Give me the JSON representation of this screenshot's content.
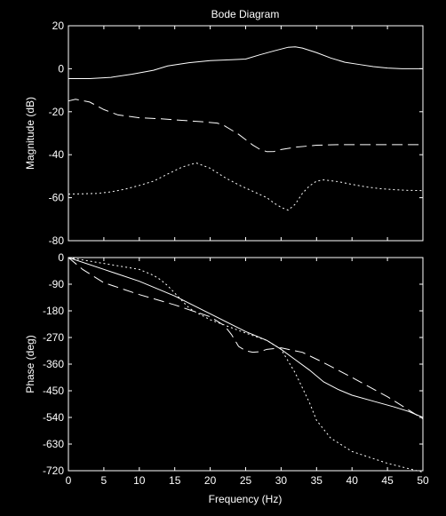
{
  "chart_data": [
    {
      "type": "line",
      "title": "Bode Diagram",
      "xlabel": "",
      "ylabel": "Magnitude (dB)",
      "xlim": [
        0,
        50
      ],
      "ylim": [
        -80,
        20
      ],
      "x_ticks": [
        0,
        5,
        10,
        15,
        20,
        25,
        30,
        35,
        40,
        45,
        50
      ],
      "y_ticks": [
        20,
        0,
        -20,
        -40,
        -60,
        -80
      ],
      "y_tick_labels": [
        "20",
        "0",
        "-20",
        "-40",
        "-60",
        "-80"
      ],
      "grid": false,
      "series": [
        {
          "style": "solid",
          "x": [
            0,
            3,
            6,
            9,
            12,
            14,
            17,
            20,
            23,
            25,
            27,
            29,
            31,
            32,
            33,
            35,
            37,
            39,
            41,
            43,
            45,
            47,
            50
          ],
          "y": [
            -4.6,
            -4.6,
            -4,
            -2.5,
            -0.7,
            1.3,
            2.8,
            3.8,
            4.2,
            4.5,
            6.5,
            8.3,
            10,
            10.2,
            9.6,
            7.5,
            5,
            3,
            2,
            1,
            0.3,
            0,
            0
          ]
        },
        {
          "style": "dashed",
          "x": [
            0,
            1,
            3,
            5,
            7,
            10,
            13,
            16,
            19,
            21,
            22,
            23,
            24,
            25,
            26,
            27,
            28,
            29,
            30,
            32,
            35,
            38,
            42,
            46,
            50
          ],
          "y": [
            -15,
            -14.2,
            -15.5,
            -19,
            -21.5,
            -22.8,
            -23.3,
            -24,
            -24.7,
            -25.3,
            -26.5,
            -28.5,
            -30.5,
            -33,
            -35.5,
            -37.5,
            -38.6,
            -38.5,
            -37.6,
            -36.5,
            -35.6,
            -35.3,
            -35.3,
            -35.3,
            -35.3
          ]
        },
        {
          "style": "dotted",
          "x": [
            0,
            2,
            4,
            6,
            8,
            10,
            12,
            14,
            16,
            18,
            20,
            22,
            24,
            26,
            28,
            29,
            30,
            31,
            32,
            33,
            34,
            35,
            36,
            38,
            40,
            42,
            44,
            46,
            48,
            50
          ],
          "y": [
            -58.3,
            -58.2,
            -58,
            -57.3,
            -56,
            -54.3,
            -52.3,
            -49,
            -45.8,
            -43.8,
            -46.3,
            -50.5,
            -54,
            -57,
            -60,
            -62.5,
            -64.5,
            -65.8,
            -63,
            -58,
            -54.5,
            -52.3,
            -51.7,
            -52.5,
            -53.8,
            -55,
            -55.8,
            -56.3,
            -56.6,
            -56.7
          ]
        }
      ]
    },
    {
      "type": "line",
      "title": "",
      "xlabel": "Frequency (Hz)",
      "ylabel": "Phase (deg)",
      "xlim": [
        0,
        50
      ],
      "ylim": [
        -720,
        0
      ],
      "x_ticks": [
        0,
        5,
        10,
        15,
        20,
        25,
        30,
        35,
        40,
        45,
        50
      ],
      "x_tick_labels": [
        "0",
        "5",
        "10",
        "15",
        "20",
        "25",
        "30",
        "35",
        "40",
        "45",
        "50"
      ],
      "y_ticks": [
        0,
        -90,
        -180,
        -270,
        -360,
        -450,
        -540,
        -630,
        -720
      ],
      "y_tick_labels": [
        "0",
        "-90",
        "-180",
        "-270",
        "-360",
        "-450",
        "-540",
        "-630",
        "-720"
      ],
      "grid": false,
      "series": [
        {
          "style": "solid",
          "x": [
            0,
            5,
            10,
            15,
            20,
            25,
            28,
            30,
            32,
            34,
            36,
            38,
            40,
            43,
            46,
            48,
            50
          ],
          "y": [
            0,
            -40,
            -80,
            -130,
            -190,
            -250,
            -280,
            -310,
            -345,
            -380,
            -420,
            -445,
            -465,
            -485,
            -505,
            -520,
            -540
          ]
        },
        {
          "style": "dashed",
          "x": [
            0,
            2,
            5,
            10,
            15,
            20,
            22,
            23,
            24,
            25,
            26,
            27,
            28,
            30,
            33,
            36,
            40,
            45,
            50
          ],
          "y": [
            0,
            -40,
            -85,
            -125,
            -160,
            -200,
            -230,
            -260,
            -300,
            -315,
            -320,
            -318,
            -310,
            -305,
            -320,
            -355,
            -405,
            -470,
            -545
          ]
        },
        {
          "style": "dotted",
          "x": [
            0,
            5,
            10,
            12,
            13,
            14,
            15,
            16,
            17,
            18,
            20,
            25,
            28,
            30,
            31,
            32,
            33,
            34,
            35,
            37,
            40,
            45,
            50
          ],
          "y": [
            0,
            -20,
            -40,
            -60,
            -75,
            -95,
            -120,
            -145,
            -170,
            -185,
            -210,
            -255,
            -280,
            -310,
            -350,
            -390,
            -440,
            -490,
            -550,
            -610,
            -655,
            -695,
            -725
          ]
        }
      ]
    }
  ]
}
